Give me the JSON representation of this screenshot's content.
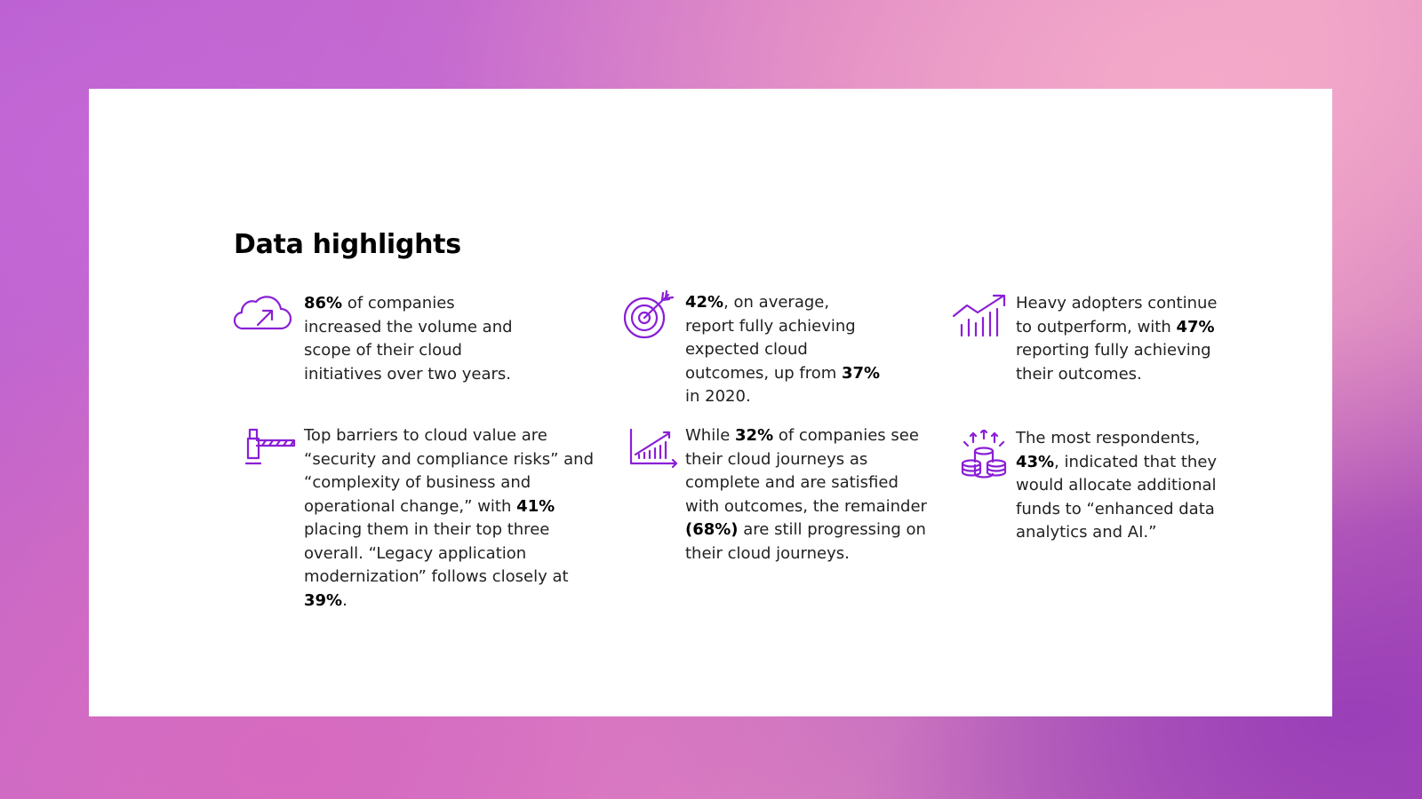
{
  "header": {
    "title": "Data highlights"
  },
  "items": [
    {
      "parts": [
        {
          "text": "86%",
          "bold": true
        },
        " of companies increased the volume and scope of their cloud initiatives over two years."
      ]
    },
    {
      "parts": [
        {
          "text": "42%",
          "bold": true
        },
        ", on average, report fully achieving expected cloud outcomes, up from ",
        {
          "text": "37%",
          "bold": true
        },
        " in 2020."
      ]
    },
    {
      "parts": [
        "Heavy adopters continue to outperform, with ",
        {
          "text": "47%",
          "bold": true
        },
        " reporting fully achieving their outcomes."
      ]
    },
    {
      "parts": [
        "Top barriers to cloud value are “security and compliance risks” and “complexity of business and operational change,” with ",
        {
          "text": "41%",
          "bold": true
        },
        " placing them in their top three overall. “Legacy application modernization” follows closely at ",
        {
          "text": "39%",
          "bold": true
        },
        "."
      ]
    },
    {
      "parts": [
        "While ",
        {
          "text": "32%",
          "bold": true
        },
        " of companies see their cloud journeys as complete and are satisfied with outcomes, the remainder ",
        {
          "text": "(68%)",
          "bold": true
        },
        " are still progressing on their cloud journeys."
      ]
    },
    {
      "parts": [
        "The most respondents, ",
        {
          "text": "43%",
          "bold": true
        },
        ", indicated that they would allocate additional funds to “enhanced data analytics and AI.”"
      ]
    }
  ]
}
